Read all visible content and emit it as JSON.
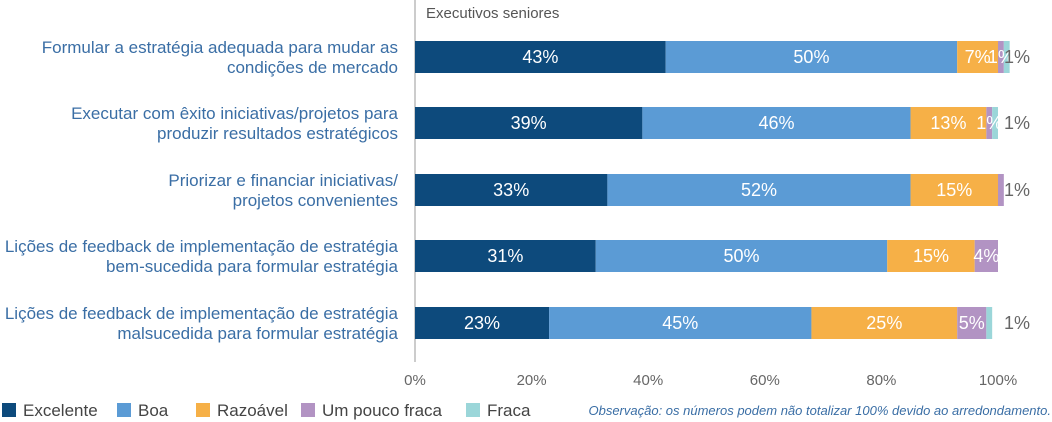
{
  "chart_data": {
    "type": "bar",
    "orientation": "horizontal",
    "stacked": true,
    "subtitle": "Executivos seniores",
    "categories": [
      [
        "Formular a estratégia adequada para mudar as",
        "condições de mercado"
      ],
      [
        "Executar com êxito iniciativas/projetos para",
        "produzir resultados estratégicos"
      ],
      [
        "Priorizar e financiar iniciativas/",
        "projetos convenientes"
      ],
      [
        "Lições de feedback de implementação de estratégia",
        "bem-sucedida para formular estratégia"
      ],
      [
        "Lições de feedback de implementação de estratégia",
        "malsucedida para formular estratégia"
      ]
    ],
    "series": [
      {
        "name": "Excelente",
        "color": "#0d4a7c",
        "text_color": "#ffffff",
        "values": [
          43,
          39,
          33,
          31,
          23
        ]
      },
      {
        "name": "Boa",
        "color": "#5b9bd5",
        "text_color": "#ffffff",
        "values": [
          50,
          46,
          52,
          50,
          45
        ]
      },
      {
        "name": "Razoável",
        "color": "#f6b047",
        "text_color": "#ffffff",
        "values": [
          7,
          13,
          15,
          15,
          25
        ]
      },
      {
        "name": "Um pouco fraca",
        "color": "#b293c3",
        "text_color": "#ffffff",
        "values": [
          1,
          1,
          1,
          4,
          5
        ]
      },
      {
        "name": "Fraca",
        "color": "#9bd6d9",
        "text_color": "#ffffff",
        "values": [
          1,
          1,
          0,
          0,
          1
        ]
      }
    ],
    "segment_labels": [
      [
        "43%",
        "50%",
        "7%",
        "1%",
        ""
      ],
      [
        "39%",
        "46%",
        "13%",
        "1%",
        ""
      ],
      [
        "33%",
        "52%",
        "15%",
        "",
        ""
      ],
      [
        "31%",
        "50%",
        "15%",
        "4%",
        ""
      ],
      [
        "23%",
        "45%",
        "25%",
        "5%",
        ""
      ]
    ],
    "outside_labels": [
      "1%",
      "1%",
      "1%",
      "",
      "1%"
    ],
    "x_ticks": [
      "0%",
      "20%",
      "40%",
      "60%",
      "80%",
      "100%"
    ],
    "xlim": [
      0,
      100
    ],
    "legend_position": "bottom",
    "note": "Observação: os números podem não totalizar 100% devido ao arredondamento."
  }
}
